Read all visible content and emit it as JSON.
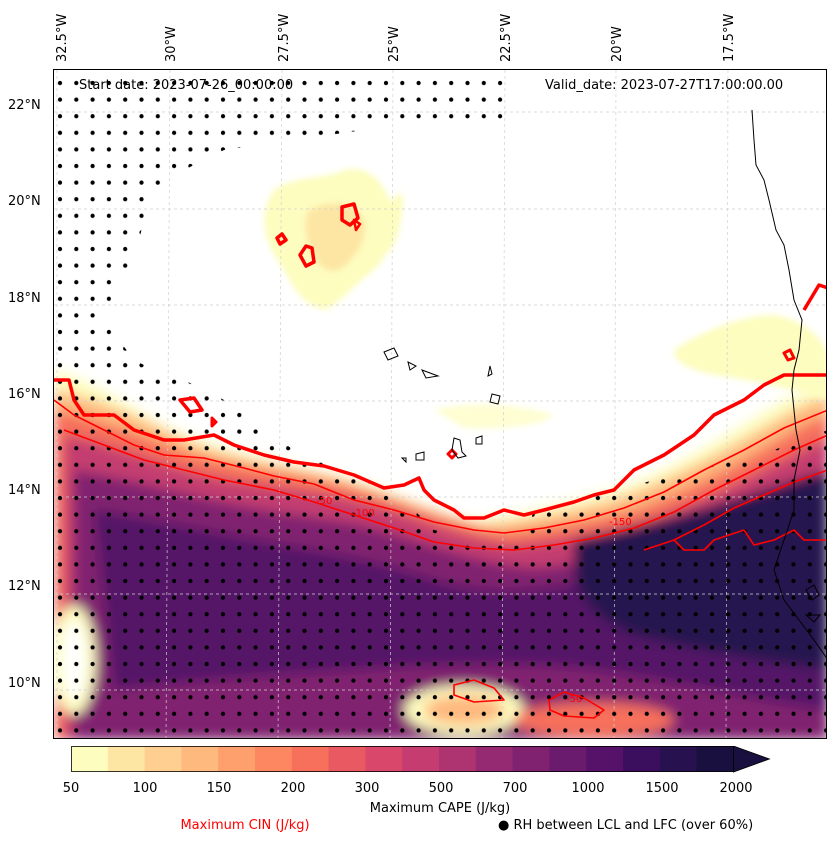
{
  "header": {
    "start_date": "Start date: 2023-07-26_00:00:00",
    "valid_date": "Valid_date: 2023-07-27T17:00:00.00"
  },
  "axes": {
    "lon_labels": [
      "32.5°W",
      "30°W",
      "27.5°W",
      "25°W",
      "22.5°W",
      "20°W",
      "17.5°W"
    ],
    "lat_labels": [
      "22°N",
      "20°N",
      "18°N",
      "16°N",
      "14°N",
      "12°N",
      "10°N"
    ]
  },
  "colorbar": {
    "ticks": [
      "50",
      "100",
      "150",
      "200",
      "300",
      "500",
      "700",
      "1000",
      "1500",
      "2000"
    ],
    "label": "Maximum CAPE (J/kg)",
    "colors": [
      "#fdfdbf",
      "#fde6a4",
      "#fecf91",
      "#feb97f",
      "#fea06d",
      "#fc8761",
      "#f6705b",
      "#e95962",
      "#d9486a",
      "#c43c70",
      "#ad3371",
      "#962a72",
      "#802270",
      "#6b1b6e",
      "#551268",
      "#3c0f5e",
      "#27124f",
      "#1a103f"
    ]
  },
  "legend": {
    "cin_label": "Maximum CIN (J/kg)",
    "rh_label": "● RH between LCL and LFC (over 60%)"
  },
  "contour_labels": [
    "-50",
    "-100",
    "-150",
    "-50"
  ],
  "colors": {
    "cin_contour": "#ff0000",
    "coast": "#000000",
    "grid": "#cccccc"
  }
}
